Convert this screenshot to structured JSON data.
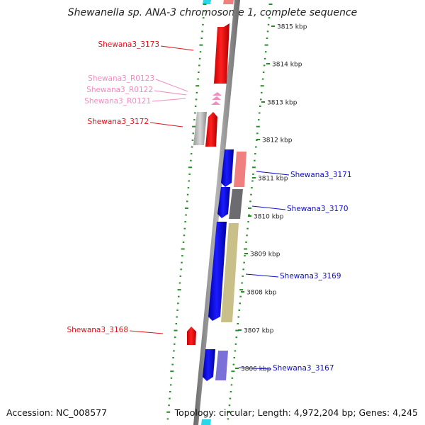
{
  "title": "Shewanella sp. ANA-3 chromosome 1, complete sequence",
  "footer": {
    "accession": "Accession: NC_008577",
    "summary": "Topology: circular; Length: 4,972,204 bp; Genes: 4,245"
  },
  "ticks": [
    {
      "label": "3815 kbp"
    },
    {
      "label": "3814 kbp"
    },
    {
      "label": "3813 kbp"
    },
    {
      "label": "3812 kbp"
    },
    {
      "label": "3811 kbp"
    },
    {
      "label": "3810 kbp"
    },
    {
      "label": "3809 kbp"
    },
    {
      "label": "3808 kbp"
    },
    {
      "label": "3807 kbp"
    },
    {
      "label": "3806 kbp"
    }
  ],
  "gene_labels": [
    {
      "text": "Shewana3_3173",
      "color": "#e0101a"
    },
    {
      "text": "Shewana3_R0123",
      "color": "#f08cc0"
    },
    {
      "text": "Shewana3_R0122",
      "color": "#f08cc0"
    },
    {
      "text": "Shewana3_R0121",
      "color": "#f08cc0"
    },
    {
      "text": "Shewana3_3172",
      "color": "#e0101a"
    },
    {
      "text": "Shewana3_3171",
      "color": "#1010c0"
    },
    {
      "text": "Shewana3_3170",
      "color": "#1010c0"
    },
    {
      "text": "Shewana3_3169",
      "color": "#1010c0"
    },
    {
      "text": "Shewana3_3168",
      "color": "#e0101a"
    },
    {
      "text": "Shewana3_3167",
      "color": "#1010c0"
    }
  ],
  "colors": {
    "forward_gene": "#ff0000",
    "reverse_gene": "#0000ee",
    "rna_gene": "#f08cc0",
    "backbone": "#888888",
    "gc_dots": "#2a8a2a",
    "tick_label": "#222222"
  }
}
